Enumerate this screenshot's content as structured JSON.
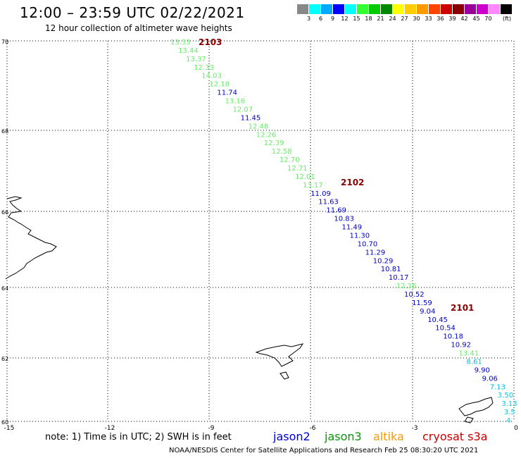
{
  "title": "12:00 – 23:59 UTC 02/22/2021",
  "subtitle": "12 hour collection of altimeter wave heights",
  "legend": {
    "colors": [
      "#888888",
      "#00ffff",
      "#00aaff",
      "#0000ff",
      "#00ffff",
      "#33ff33",
      "#00cc00",
      "#008800",
      "#ffff00",
      "#ffcc00",
      "#ff9900",
      "#ff4400",
      "#cc0000",
      "#880000",
      "#990099",
      "#cc00cc",
      "#ff88ff",
      "#000000"
    ],
    "labels": [
      "3",
      "6",
      "9",
      "12",
      "15",
      "18",
      "21",
      "24",
      "27",
      "30",
      "33",
      "36",
      "39",
      "42",
      "45",
      "70"
    ],
    "unit": "(ft)"
  },
  "axes": {
    "lat_labels": [
      "70",
      "68",
      "66",
      "64",
      "62",
      "60"
    ],
    "lon_labels": [
      "-15",
      "-12",
      "-9",
      "-6",
      "-3",
      "0"
    ]
  },
  "passes": [
    {
      "id": "2103"
    },
    {
      "id": "2102"
    },
    {
      "id": "2101"
    }
  ],
  "track": [
    {
      "v": "13.33",
      "c": "#66ee66"
    },
    {
      "v": "13.44",
      "c": "#66ee66"
    },
    {
      "v": "13.37",
      "c": "#66ee66"
    },
    {
      "v": "12.33",
      "c": "#66ee66"
    },
    {
      "v": "14.03",
      "c": "#66ee66"
    },
    {
      "v": "12.18",
      "c": "#66ee66"
    },
    {
      "v": "11.74",
      "c": "#0000cc"
    },
    {
      "v": "13.16",
      "c": "#66ee66"
    },
    {
      "v": "12.07",
      "c": "#66ee66"
    },
    {
      "v": "11.45",
      "c": "#0000cc"
    },
    {
      "v": "12.48",
      "c": "#66ee66"
    },
    {
      "v": "12.26",
      "c": "#66ee66"
    },
    {
      "v": "12.39",
      "c": "#66ee66"
    },
    {
      "v": "12.58",
      "c": "#66ee66"
    },
    {
      "v": "12.70",
      "c": "#66ee66"
    },
    {
      "v": "12.71",
      "c": "#66ee66"
    },
    {
      "v": "12.01",
      "c": "#66ee66"
    },
    {
      "v": "13.17",
      "c": "#66ee66"
    },
    {
      "v": "11.09",
      "c": "#0000cc"
    },
    {
      "v": "11.63",
      "c": "#0000cc"
    },
    {
      "v": "11.69",
      "c": "#0000cc"
    },
    {
      "v": "10.83",
      "c": "#0000cc"
    },
    {
      "v": "11.49",
      "c": "#0000cc"
    },
    {
      "v": "11.30",
      "c": "#0000cc"
    },
    {
      "v": "10.70",
      "c": "#0000cc"
    },
    {
      "v": "11.29",
      "c": "#0000cc"
    },
    {
      "v": "10.29",
      "c": "#0000cc"
    },
    {
      "v": "10.81",
      "c": "#0000cc"
    },
    {
      "v": "10.17",
      "c": "#0000cc"
    },
    {
      "v": "12.16",
      "c": "#66ee66"
    },
    {
      "v": "10.52",
      "c": "#0000cc"
    },
    {
      "v": "11.59",
      "c": "#0000cc"
    },
    {
      "v": "9.04",
      "c": "#0000cc"
    },
    {
      "v": "10.45",
      "c": "#0000cc"
    },
    {
      "v": "10.54",
      "c": "#0000cc"
    },
    {
      "v": "10.18",
      "c": "#0000cc"
    },
    {
      "v": "10.92",
      "c": "#0000cc"
    },
    {
      "v": "13.41",
      "c": "#66ee66"
    },
    {
      "v": "8.61",
      "c": "#00bbdd"
    },
    {
      "v": "9.90",
      "c": "#0000cc"
    },
    {
      "v": "9.06",
      "c": "#0000cc"
    },
    {
      "v": "7.13",
      "c": "#00bbdd"
    },
    {
      "v": "3.50",
      "c": "#00ccee"
    },
    {
      "v": "3.13",
      "c": "#00ccee"
    },
    {
      "v": "3.5",
      "c": "#00ccee"
    },
    {
      "v": "4",
      "c": "#00ccee"
    }
  ],
  "footer": {
    "note": "note:  1) Time is in UTC;  2) SWH is in feet",
    "satellites": [
      {
        "name": "jason2",
        "color": "#0000cc"
      },
      {
        "name": "jason3",
        "color": "#009900"
      },
      {
        "name": "altika",
        "color": "#ff9900"
      },
      {
        "name": "cryosat s3a",
        "color": "#cc0000"
      }
    ],
    "credit": "NOAA/NESDIS Center for Satellite Applications and Research     Feb 25 08:30:20 UTC 2021"
  }
}
